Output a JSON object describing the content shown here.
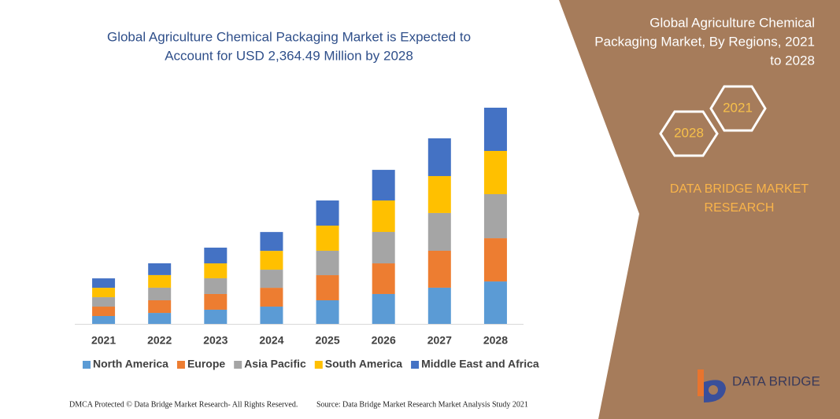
{
  "chart_data": {
    "type": "stacked-bar",
    "title": [
      "Global Agriculture Chemical Packaging Market is Expected to",
      "Account for USD 2,364.49 Million by 2028"
    ],
    "categories": [
      "2021",
      "2022",
      "2023",
      "2024",
      "2025",
      "2026",
      "2027",
      "2028"
    ],
    "series": [
      {
        "name": "North America",
        "color": "#5b9bd5",
        "values": [
          86,
          120,
          155,
          189,
          258,
          327,
          396,
          464
        ]
      },
      {
        "name": "Europe",
        "color": "#ed7d31",
        "values": [
          103,
          138,
          172,
          206,
          275,
          335,
          404,
          473
        ]
      },
      {
        "name": "Asia Pacific",
        "color": "#a5a5a5",
        "values": [
          103,
          138,
          172,
          198,
          267,
          344,
          413,
          482
        ]
      },
      {
        "name": "South America",
        "color": "#ffc000",
        "values": [
          103,
          138,
          163,
          206,
          275,
          344,
          404,
          473
        ]
      },
      {
        "name": "Middle East and Africa",
        "color": "#4472c4",
        "values": [
          103,
          129,
          172,
          206,
          275,
          335,
          413,
          473
        ]
      }
    ],
    "ylim": [
      0,
      2365
    ]
  },
  "panel": {
    "title": [
      "Global Agriculture Chemical",
      "Packaging Market, By Regions, 2021",
      "to 2028"
    ],
    "hexagons": [
      "2021",
      "2028"
    ],
    "brand": [
      "DATA BRIDGE MARKET",
      "RESEARCH"
    ]
  },
  "logo": {
    "name": "DATA BRIDGE"
  },
  "footer": {
    "left": "DMCA Protected © Data Bridge Market Research-  All Rights Reserved.",
    "right": "Source: Data Bridge Market Research  Market Analysis Study 2021"
  }
}
